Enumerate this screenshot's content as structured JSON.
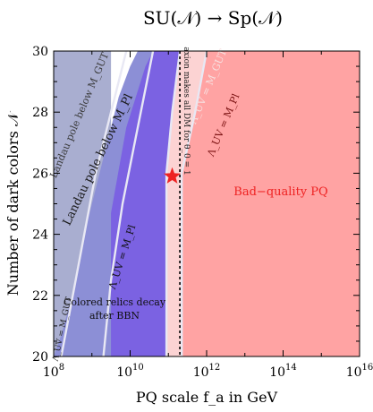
{
  "chart_data": {
    "type": "area",
    "title": "SU(𝒩) → Sp(𝒩)",
    "xlabel": "PQ scale f_a in GeV",
    "ylabel": "Number of dark colors 𝒩",
    "xscale": "log10",
    "xlim": [
      8,
      16
    ],
    "ylim": [
      20,
      30
    ],
    "x_ticks": [
      8,
      10,
      12,
      14,
      16
    ],
    "y_ticks": [
      20,
      22,
      24,
      26,
      28,
      30
    ],
    "y_tick_labels": [
      "20",
      "22",
      "24",
      "26",
      "28",
      "30"
    ],
    "grid": false,
    "benchmark_point": {
      "log10_fa": 11.1,
      "N": 25.9,
      "color": "#ee2222"
    },
    "dm_line": {
      "log10_fa": 11.3
    },
    "regions": [
      {
        "name": "Landau pole below M_GUT",
        "color": "#a9aed0",
        "polygon": [
          [
            8,
            20
          ],
          [
            8,
            30
          ],
          [
            9.5,
            30
          ],
          [
            9.5,
            20
          ]
        ]
      },
      {
        "name": "Landau pole below M_Pl",
        "color": "#8c8fd6",
        "polygon": [
          [
            8,
            20
          ],
          [
            8.2,
            20.7
          ],
          [
            8.6,
            22.5
          ],
          [
            8.9,
            24.5
          ],
          [
            9.3,
            26.5
          ],
          [
            9.7,
            28.5
          ],
          [
            10,
            29.5
          ],
          [
            10.2,
            30
          ],
          [
            12,
            30
          ],
          [
            12,
            20
          ]
        ]
      },
      {
        "name": "Λ_UV = M_Pl",
        "color": "#7b62e2",
        "polygon": [
          [
            9.5,
            20
          ],
          [
            9.5,
            24.7
          ],
          [
            9.9,
            27.5
          ],
          [
            10.4,
            29.5
          ],
          [
            10.6,
            30
          ],
          [
            12,
            30
          ],
          [
            12,
            20
          ]
        ]
      },
      {
        "name": "Bad-quality PQ (light)",
        "color": "#fcd3d3",
        "polygon": [
          [
            10.95,
            20
          ],
          [
            10.95,
            26
          ],
          [
            11.1,
            28
          ],
          [
            11.3,
            30
          ],
          [
            16,
            30
          ],
          [
            16,
            20
          ]
        ]
      },
      {
        "name": "Bad-quality PQ",
        "color": "#ffa3a3",
        "polygon": [
          [
            11.35,
            20
          ],
          [
            11.35,
            26
          ],
          [
            11.7,
            28
          ],
          [
            12,
            30
          ],
          [
            16,
            30
          ],
          [
            16,
            20
          ]
        ]
      }
    ],
    "boundaries": [
      {
        "name": "Λ_UV = M_GUT (Landau)",
        "points": [
          [
            8.2,
            20
          ],
          [
            8.5,
            22
          ],
          [
            8.8,
            24
          ],
          [
            9.1,
            26
          ],
          [
            9.5,
            28
          ],
          [
            9.9,
            30
          ]
        ]
      },
      {
        "name": "Λ_UV = M_Pl (Landau)",
        "points": [
          [
            9.3,
            20
          ],
          [
            9.5,
            22.5
          ],
          [
            9.8,
            25
          ],
          [
            10.2,
            27.5
          ],
          [
            10.6,
            30
          ]
        ]
      },
      {
        "name": "Λ_UV = M_GUT",
        "points": [
          [
            10.95,
            20
          ],
          [
            10.95,
            26
          ],
          [
            11.1,
            28
          ],
          [
            11.3,
            30
          ]
        ]
      },
      {
        "name": "Λ_UV = M_Pl",
        "points": [
          [
            11.35,
            20
          ],
          [
            11.35,
            26
          ],
          [
            11.7,
            28
          ],
          [
            12,
            30
          ]
        ]
      }
    ],
    "annotations": {
      "landau_gut": "Landau pole below M_GUT",
      "landau_pl": "Landau pole below M_Pl",
      "uv_pl_inner": "Λ_UV = M_Pl",
      "colored_relics_1": "Colored relics decay",
      "colored_relics_2": "after BBN",
      "uv_gut_left": "Λ_UV = M_GUT",
      "axion_dm_1": "axion makes all DM for θ_0 = 1",
      "uv_gut_right": "Λ_UV = M_GUT",
      "uv_pl_right": "Λ_UV = M_Pl",
      "bad_quality": "Bad−quality PQ"
    }
  }
}
